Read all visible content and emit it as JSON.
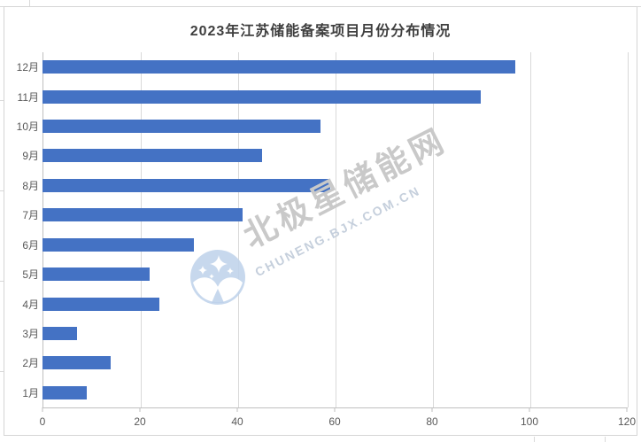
{
  "chart_data": {
    "type": "bar",
    "orientation": "horizontal",
    "title": "2023年江苏储能备案项目月份分布情况",
    "categories": [
      "12月",
      "11月",
      "10月",
      "9月",
      "8月",
      "7月",
      "6月",
      "5月",
      "4月",
      "3月",
      "2月",
      "1月"
    ],
    "values": [
      97,
      90,
      57,
      45,
      59,
      41,
      31,
      22,
      24,
      7,
      14,
      9
    ],
    "xlabel": "",
    "ylabel": "",
    "xlim": [
      0,
      120
    ],
    "x_ticks": [
      0,
      20,
      40,
      60,
      80,
      100,
      120
    ],
    "grid": "vertical-only",
    "legend": "none",
    "bar_color": "#4472C4"
  },
  "watermark": {
    "text_cn": "北极星储能网",
    "text_url": "CHUNENG.BJX.COM.CN",
    "logo": "bjx-polar-star-logo"
  },
  "colors": {
    "bar": "#4472C4",
    "title_text": "#3f3f3f",
    "axis_label": "#595959",
    "gridline": "#d9d9d9",
    "axis_line": "#bfbfbf",
    "chart_border": "#d5d5d5",
    "watermark_cn": "#c9c9c9",
    "watermark_url": "#c5cfdc",
    "watermark_logo": "#bdd1ea"
  }
}
